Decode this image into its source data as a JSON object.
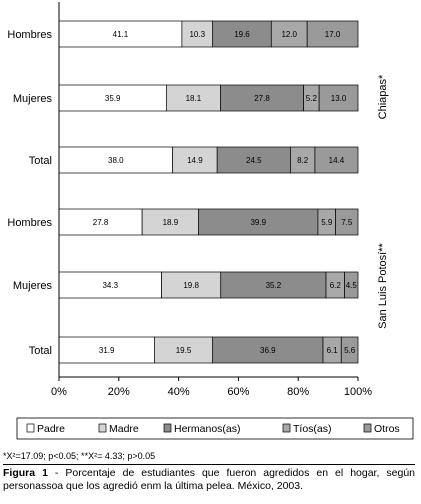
{
  "chart_data": {
    "type": "bar",
    "orientation": "horizontal",
    "stacked": true,
    "categories": [
      "Hombres",
      "Mujeres",
      "Total",
      "Hombres",
      "Mujeres",
      "Total"
    ],
    "groups": [
      {
        "label": "Chiapas*",
        "rows": [
          0,
          1,
          2
        ]
      },
      {
        "label": "San Luis Potosí**",
        "rows": [
          3,
          4,
          5
        ]
      }
    ],
    "series": [
      {
        "name": "Padre",
        "color": "#ffffff",
        "values": [
          41.1,
          35.9,
          38.0,
          27.8,
          34.3,
          31.9
        ],
        "labels": [
          "41.1",
          "35.9",
          "38.0",
          "27.8",
          "34.3",
          "31.9"
        ]
      },
      {
        "name": "Madre",
        "color": "#d4d4d4",
        "values": [
          10.3,
          18.1,
          14.9,
          18.9,
          19.8,
          19.5
        ],
        "labels": [
          "10.3",
          "18.1",
          "14.9",
          "18.9",
          "19.8",
          "19.5"
        ]
      },
      {
        "name": "Hermanos(as)",
        "color": "#8c8c8c",
        "values": [
          19.6,
          27.8,
          24.5,
          39.9,
          35.2,
          36.9
        ],
        "labels": [
          "19.6",
          "27.8",
          "24.5",
          "39.9",
          "35.2",
          "36.9"
        ]
      },
      {
        "name": "Tíos(as)",
        "color": "#a8a8a8",
        "values": [
          12.0,
          5.2,
          8.2,
          5.9,
          6.2,
          6.1
        ],
        "labels": [
          "12.0",
          "5.2",
          "8.2",
          "5.9",
          "6.2",
          "6.1"
        ]
      },
      {
        "name": "Otros",
        "color": "#9a9a9a",
        "values": [
          17.0,
          13.0,
          14.4,
          7.5,
          4.5,
          5.6
        ],
        "labels": [
          "17.0",
          "13.0",
          "14.4",
          "7.5",
          "4.5",
          "5.6"
        ]
      }
    ],
    "xlim": [
      0,
      100
    ],
    "xticks": [
      "0%",
      "20%",
      "40%",
      "60%",
      "80%",
      "100%"
    ],
    "legend_position": "bottom",
    "grid": false
  },
  "notes": "*X²=17.09; p<0.05; **X²= 4.33; p>0.05",
  "caption": {
    "label": "Figura 1",
    "text": " - Porcentaje de estudiantes que fueron agredidos en el hogar, según personassoa que los agredió enm la última pelea. México, 2003."
  }
}
